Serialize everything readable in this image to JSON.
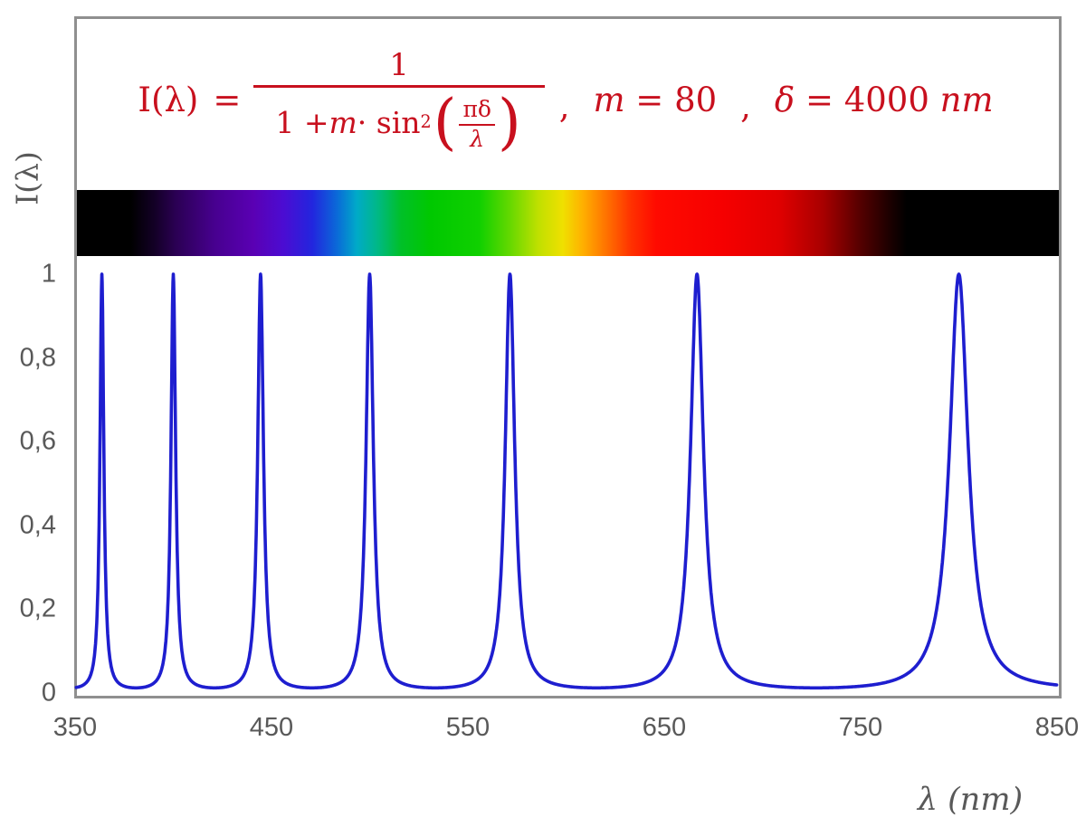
{
  "formula": {
    "color": "#C8101E",
    "lhs": "I(λ)",
    "equals": "=",
    "numerator": "1",
    "den_one_plus": "1 + ",
    "den_m": "m",
    "den_dot_sin": " · sin",
    "den_sup": "2",
    "open_paren": "(",
    "inner_numerator": "πδ",
    "inner_denominator": "λ",
    "close_paren": ")",
    "comma": ",",
    "m_var": "m",
    "m_rest": " = 80",
    "delta_var": "δ",
    "delta_rest": " = 4000 ",
    "delta_unit": "nm"
  },
  "chart_data": {
    "type": "line",
    "function": "I(lambda) = 1 / (1 + m * sin^2(pi*delta/lambda))",
    "params": {
      "m": 80,
      "delta_nm": 4000
    },
    "x_axis": {
      "label": "λ  (nm)",
      "min": 350,
      "max": 850,
      "ticks": [
        {
          "label": "350",
          "value": 350
        },
        {
          "label": "450",
          "value": 450
        },
        {
          "label": "550",
          "value": 550
        },
        {
          "label": "650",
          "value": 650
        },
        {
          "label": "750",
          "value": 750
        },
        {
          "label": "850",
          "value": 850
        }
      ]
    },
    "y_axis": {
      "label": "I(λ)",
      "min": 0,
      "max": 1,
      "ticks": [
        {
          "label": "1",
          "value": 1.0
        },
        {
          "label": "0,8",
          "value": 0.8
        },
        {
          "label": "0,6",
          "value": 0.6
        },
        {
          "label": "0,4",
          "value": 0.4
        },
        {
          "label": "0,2",
          "value": 0.2
        },
        {
          "label": "0",
          "value": 0.0
        }
      ]
    },
    "curve": {
      "color": "#1E1ECF",
      "stroke_width": 3.6,
      "sample_step_nm": 0.2,
      "peaks_nm": [
        363.636,
        400,
        444.444,
        500,
        571.429,
        666.667,
        800
      ],
      "peak_value": 1.0
    },
    "grid": false,
    "legend": false
  },
  "spectrum_bar": {
    "description": "visible-light spectrum strip aligned to 350-850 nm axis, black outside ~380-770 nm",
    "stops": [
      [
        0,
        "#000000"
      ],
      [
        5.5,
        "#000000"
      ],
      [
        8,
        "#140028"
      ],
      [
        10,
        "#2a0052"
      ],
      [
        14,
        "#47008f"
      ],
      [
        18,
        "#5a00b4"
      ],
      [
        21,
        "#4c0cd2"
      ],
      [
        24,
        "#2226de"
      ],
      [
        26.5,
        "#0a6ad8"
      ],
      [
        28.5,
        "#00aac8"
      ],
      [
        30.5,
        "#00b88a"
      ],
      [
        33,
        "#00c028"
      ],
      [
        36,
        "#00c800"
      ],
      [
        41,
        "#10d000"
      ],
      [
        44,
        "#62d800"
      ],
      [
        47,
        "#c0e000"
      ],
      [
        49.5,
        "#f0e000"
      ],
      [
        51.5,
        "#ffb000"
      ],
      [
        54,
        "#ff7000"
      ],
      [
        56.5,
        "#ff3000"
      ],
      [
        59,
        "#ff0a00"
      ],
      [
        66,
        "#f50000"
      ],
      [
        71.5,
        "#e00000"
      ],
      [
        76,
        "#a80000"
      ],
      [
        80,
        "#500000"
      ],
      [
        83,
        "#180000"
      ],
      [
        84.5,
        "#000000"
      ],
      [
        100,
        "#000000"
      ]
    ]
  },
  "frame": {
    "border_color": "#8f8f8f"
  },
  "text_color": "#595959"
}
